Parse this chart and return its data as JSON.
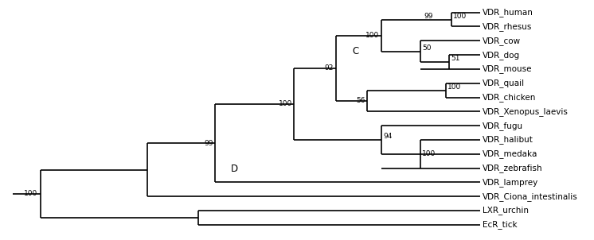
{
  "fig_width": 7.46,
  "fig_height": 3.02,
  "dpi": 100,
  "bg_color": "#ffffff",
  "line_color": "#000000",
  "line_width": 1.2,
  "font_size": 6.5,
  "label_font_size": 7.5,
  "taxa_y": {
    "VDR_human": 0,
    "VDR_rhesus": 1,
    "VDR_cow": 2,
    "VDR_dog": 3,
    "VDR_mouse": 4,
    "VDR_quail": 5,
    "VDR_chicken": 6,
    "VDR_Xenopus_laevis": 7,
    "VDR_fugu": 8,
    "VDR_halibut": 9,
    "VDR_medaka": 10,
    "VDR_zebrafish": 11,
    "VDR_lamprey": 12,
    "VDR_Ciona_intestinalis": 13,
    "LXR_urchin": 14,
    "EcR_tick": 15
  },
  "x_leaf": 85.0,
  "x_100_hr": 80.0,
  "x_99_hr_stem": 77.0,
  "x_51_dm": 79.5,
  "x_50_cow": 74.5,
  "x_100_mam": 67.5,
  "x_100_qc": 79.0,
  "x_56_bird": 65.0,
  "x_92_C": 59.5,
  "x_94_fugu": 67.5,
  "x_100_fish3": 74.5,
  "x_100_inner": 52.0,
  "x_99_D": 38.0,
  "x_vdr_main": 26.0,
  "x_lxr_ecr": 35.0,
  "x_root": 7.0,
  "x_stub_left": 2.0,
  "xlim_left": 0,
  "xlim_right": 100,
  "ylim_top": -0.8,
  "ylim_bottom": 16.0
}
